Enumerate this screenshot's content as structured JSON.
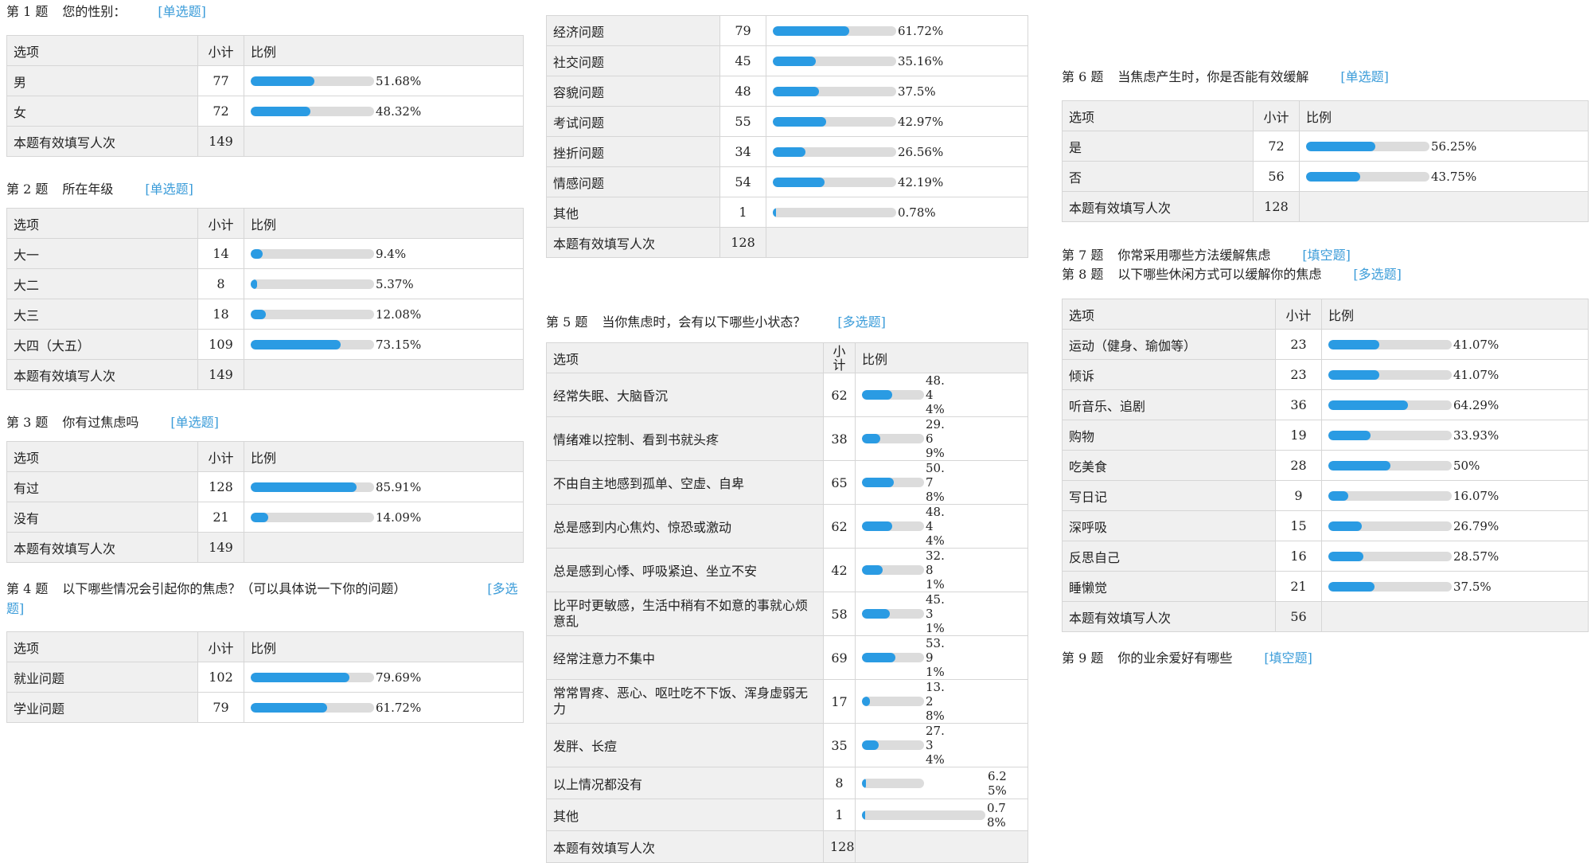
{
  "labels": {
    "option": "选项",
    "count": "小计",
    "ratio": "比例",
    "count_split": [
      "小",
      "计"
    ],
    "total": "本题有效填写人次"
  },
  "colors": {
    "bar": "#2a9be3",
    "track": "#dcdcdc",
    "type": "#3b9cd9"
  },
  "q1": {
    "num": "第 1 题",
    "title": "您的性别：",
    "type": "[单选题]",
    "rows": [
      {
        "label": "男",
        "count": "77",
        "pct": "51.68%",
        "value": 51.68
      },
      {
        "label": "女",
        "count": "72",
        "pct": "48.32%",
        "value": 48.32
      }
    ],
    "total": "149"
  },
  "q2": {
    "num": "第 2 题",
    "title": "所在年级",
    "type": "[单选题]",
    "rows": [
      {
        "label": "大一",
        "count": "14",
        "pct": "9.4%",
        "value": 9.4
      },
      {
        "label": "大二",
        "count": "8",
        "pct": "5.37%",
        "value": 5.37
      },
      {
        "label": "大三",
        "count": "18",
        "pct": "12.08%",
        "value": 12.08
      },
      {
        "label": "大四（大五）",
        "count": "109",
        "pct": "73.15%",
        "value": 73.15
      }
    ],
    "total": "149"
  },
  "q3": {
    "num": "第 3 题",
    "title": "你有过焦虑吗",
    "type": "[单选题]",
    "rows": [
      {
        "label": "有过",
        "count": "128",
        "pct": "85.91%",
        "value": 85.91
      },
      {
        "label": "没有",
        "count": "21",
        "pct": "14.09%",
        "value": 14.09
      }
    ],
    "total": "149"
  },
  "q4": {
    "num": "第 4 题",
    "title": "以下哪些情况会引起你的焦虑？（可以具体说一下你的问题）",
    "type_a": "[多选",
    "type_b": "题]",
    "rows": [
      {
        "label": "就业问题",
        "count": "102",
        "pct": "79.69%",
        "value": 79.69
      },
      {
        "label": "学业问题",
        "count": "79",
        "pct": "61.72%",
        "value": 61.72
      }
    ]
  },
  "q4cont": {
    "rows": [
      {
        "label": "经济问题",
        "count": "79",
        "pct": "61.72%",
        "value": 61.72
      },
      {
        "label": "社交问题",
        "count": "45",
        "pct": "35.16%",
        "value": 35.16
      },
      {
        "label": "容貌问题",
        "count": "48",
        "pct": "37.5%",
        "value": 37.5
      },
      {
        "label": "考试问题",
        "count": "55",
        "pct": "42.97%",
        "value": 42.97
      },
      {
        "label": "挫折问题",
        "count": "34",
        "pct": "26.56%",
        "value": 26.56
      },
      {
        "label": "情感问题",
        "count": "54",
        "pct": "42.19%",
        "value": 42.19
      },
      {
        "label": "其他",
        "count": "1",
        "pct": "0.78%",
        "value": 0.78
      }
    ],
    "total": "128"
  },
  "q5": {
    "num": "第 5 题",
    "title": "当你焦虑时，会有以下哪些小状态？",
    "type": "[多选题]",
    "rows": [
      {
        "label": "经常失眠、大脑昏沉",
        "count": "62",
        "pct": "48.44%",
        "value": 48.44
      },
      {
        "label": "情绪难以控制、看到书就头疼",
        "count": "38",
        "pct": "29.69%",
        "value": 29.69
      },
      {
        "label": "不由自主地感到孤单、空虚、自卑",
        "count": "65",
        "pct": "50.78%",
        "value": 50.78
      },
      {
        "label": "总是感到内心焦灼、惊恐或激动",
        "count": "62",
        "pct": "48.44%",
        "value": 48.44
      },
      {
        "label": "总是感到心悸、呼吸紧迫、坐立不安",
        "count": "42",
        "pct": "32.81%",
        "value": 32.81
      },
      {
        "label": "比平时更敏感，生活中稍有不如意的事就心烦意乱",
        "count": "58",
        "pct": "45.31%",
        "value": 45.31
      },
      {
        "label": "经常注意力不集中",
        "count": "69",
        "pct": "53.91%",
        "value": 53.91
      },
      {
        "label": "常常胃疼、恶心、呕吐吃不下饭、浑身虚弱无力",
        "count": "17",
        "pct": "13.28%",
        "value": 13.28
      },
      {
        "label": "发胖、长痘",
        "count": "35",
        "pct": "27.34%",
        "value": 27.34
      },
      {
        "label": "以上情况都没有",
        "count": "8",
        "pct": "6.25%",
        "value": 6.25
      },
      {
        "label": "其他",
        "count": "1",
        "pct": "0.78%",
        "value": 0.78
      }
    ],
    "total": "128"
  },
  "q6": {
    "num": "第 6 题",
    "title": "当焦虑产生时，你是否能有效缓解",
    "type": "[单选题]",
    "rows": [
      {
        "label": "是",
        "count": "72",
        "pct": "56.25%",
        "value": 56.25
      },
      {
        "label": "否",
        "count": "56",
        "pct": "43.75%",
        "value": 43.75
      }
    ],
    "total": "128"
  },
  "q7": {
    "num": "第 7 题",
    "title": "你常采用哪些方法缓解焦虑",
    "type": "[填空题]"
  },
  "q8": {
    "num": "第 8 题",
    "title": "以下哪些休闲方式可以缓解你的焦虑",
    "type": "[多选题]",
    "rows": [
      {
        "label": "运动（健身、瑜伽等）",
        "count": "23",
        "pct": "41.07%",
        "value": 41.07
      },
      {
        "label": "倾诉",
        "count": "23",
        "pct": "41.07%",
        "value": 41.07
      },
      {
        "label": "听音乐、追剧",
        "count": "36",
        "pct": "64.29%",
        "value": 64.29
      },
      {
        "label": "购物",
        "count": "19",
        "pct": "33.93%",
        "value": 33.93
      },
      {
        "label": "吃美食",
        "count": "28",
        "pct": "50%",
        "value": 50
      },
      {
        "label": "写日记",
        "count": "9",
        "pct": "16.07%",
        "value": 16.07
      },
      {
        "label": "深呼吸",
        "count": "15",
        "pct": "26.79%",
        "value": 26.79
      },
      {
        "label": "反思自己",
        "count": "16",
        "pct": "28.57%",
        "value": 28.57
      },
      {
        "label": "睡懒觉",
        "count": "21",
        "pct": "37.5%",
        "value": 37.5
      }
    ],
    "total": "56"
  },
  "q9": {
    "num": "第 9 题",
    "title": "你的业余爱好有哪些",
    "type": "[填空题]"
  }
}
